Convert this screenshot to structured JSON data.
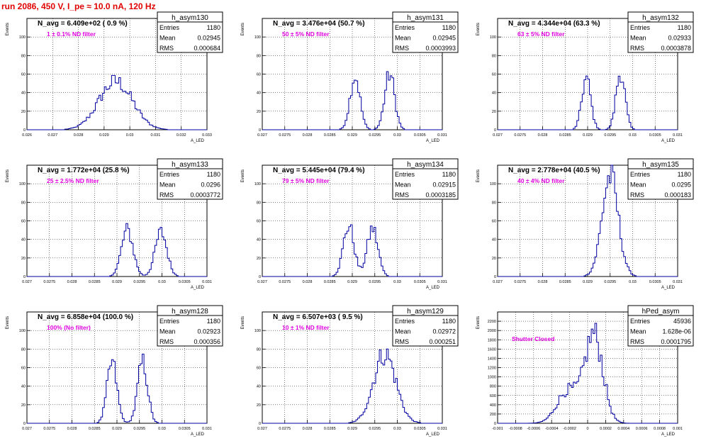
{
  "page_title": "run 2086,   450 V, I_pe ≈ 10.0 nA, 120 Hz",
  "stats_labels": {
    "entries": "Entries",
    "mean": "Mean",
    "rms": "RMS"
  },
  "colors": {
    "histogram": "#0000a0",
    "magenta_text": "#e000e0",
    "title_red": "#e00000",
    "grid": "#000000"
  },
  "chart_data": [
    {
      "type": "histogram",
      "name": "h_asym130",
      "header": "N_avg = 6.409e+02 ( 0.9 %)",
      "note": "1 ± 0.1% ND filter",
      "stats": {
        "entries": "1180",
        "mean": "0.02945",
        "rms": "0.000684"
      },
      "xlabel": "A_LED",
      "ylabel": "Events",
      "xlim": [
        0.026,
        0.033
      ],
      "ylim": [
        0,
        120
      ],
      "xticks": [
        "0.026",
        "0.027",
        "0.028",
        "0.029",
        "0.03",
        "0.031",
        "0.032",
        "0.033"
      ],
      "yticks": [
        "0",
        "20",
        "40",
        "60",
        "80",
        "100"
      ],
      "yticks_values": [
        0,
        20,
        40,
        60,
        80,
        100
      ],
      "grid": true,
      "shape": {
        "peaks": [
          {
            "center": 0.02945,
            "sigma": 0.00065,
            "height": 52
          }
        ]
      }
    },
    {
      "type": "histogram",
      "name": "h_asym131",
      "header": "N_avg = 3.476e+04 (50.7 %)",
      "note": "50 ± 5% ND filter",
      "stats": {
        "entries": "1180",
        "mean": "0.02945",
        "rms": "0.0003993"
      },
      "xlabel": "A_LED",
      "ylabel": "Events",
      "xlim": [
        0.027,
        0.031
      ],
      "ylim": [
        0,
        120
      ],
      "xticks": [
        "0.027",
        "0.0275",
        "0.028",
        "0.0285",
        "0.029",
        "0.0295",
        "0.03",
        "0.0305",
        "0.031"
      ],
      "yticks": [
        "0",
        "20",
        "40",
        "60",
        "80",
        "100"
      ],
      "yticks_values": [
        0,
        20,
        40,
        60,
        80,
        100
      ],
      "grid": true,
      "shape": {
        "peaks": [
          {
            "center": 0.02906,
            "sigma": 0.00011,
            "height": 58
          },
          {
            "center": 0.02983,
            "sigma": 0.00011,
            "height": 60
          }
        ]
      }
    },
    {
      "type": "histogram",
      "name": "h_asym132",
      "header": "N_avg = 4.344e+04 (63.3 %)",
      "note": "63 ± 5% ND filter",
      "stats": {
        "entries": "1180",
        "mean": "0.02933",
        "rms": "0.0003878"
      },
      "xlabel": "A_LED",
      "ylabel": "Events",
      "xlim": [
        0.027,
        0.031
      ],
      "ylim": [
        0,
        120
      ],
      "xticks": [
        "0.027",
        "0.0275",
        "0.028",
        "0.0285",
        "0.029",
        "0.0295",
        "0.03",
        "0.0305",
        "0.031"
      ],
      "yticks": [
        "0",
        "20",
        "40",
        "60",
        "80",
        "100"
      ],
      "yticks_values": [
        0,
        20,
        40,
        60,
        80,
        100
      ],
      "grid": true,
      "shape": {
        "peaks": [
          {
            "center": 0.02897,
            "sigma": 0.0001,
            "height": 55
          },
          {
            "center": 0.02973,
            "sigma": 0.0001,
            "height": 62
          }
        ]
      }
    },
    {
      "type": "histogram",
      "name": "h_asym133",
      "header": "N_avg = 1.772e+04 (25.8 %)",
      "note": "25 ± 2.5% ND filter",
      "stats": {
        "entries": "1180",
        "mean": "0.0296",
        "rms": "0.0003772"
      },
      "xlabel": "A_LED",
      "ylabel": "Events",
      "xlim": [
        0.027,
        0.031
      ],
      "ylim": [
        0,
        120
      ],
      "xticks": [
        "0.027",
        "0.0275",
        "0.028",
        "0.0285",
        "0.029",
        "0.0295",
        "0.03",
        "0.0305",
        "0.031"
      ],
      "yticks": [
        "0",
        "20",
        "40",
        "60",
        "80",
        "100"
      ],
      "yticks_values": [
        0,
        20,
        40,
        60,
        80,
        100
      ],
      "grid": true,
      "shape": {
        "peaks": [
          {
            "center": 0.02923,
            "sigma": 0.00013,
            "height": 50
          },
          {
            "center": 0.02998,
            "sigma": 0.00013,
            "height": 48
          }
        ]
      }
    },
    {
      "type": "histogram",
      "name": "h_asym134",
      "header": "N_avg = 5.445e+04 (79.4 %)",
      "note": "79 ± 5% ND filter",
      "stats": {
        "entries": "1180",
        "mean": "0.02915",
        "rms": "0.0003185"
      },
      "xlabel": "A_LED",
      "ylabel": "Events",
      "xlim": [
        0.027,
        0.031
      ],
      "ylim": [
        0,
        120
      ],
      "xticks": [
        "0.027",
        "0.0275",
        "0.028",
        "0.0285",
        "0.029",
        "0.0295",
        "0.03",
        "0.0305",
        "0.031"
      ],
      "yticks": [
        "0",
        "20",
        "40",
        "60",
        "80",
        "100"
      ],
      "yticks_values": [
        0,
        20,
        40,
        60,
        80,
        100
      ],
      "grid": true,
      "shape": {
        "peaks": [
          {
            "center": 0.02892,
            "sigma": 0.00012,
            "height": 55
          },
          {
            "center": 0.02945,
            "sigma": 0.00012,
            "height": 52
          }
        ]
      }
    },
    {
      "type": "histogram",
      "name": "h_asym135",
      "header": "N_avg = 2.778e+04 (40.5 %)",
      "note": "40 ± 4% ND filter",
      "stats": {
        "entries": "1180",
        "mean": "0.0295",
        "rms": "0.000183"
      },
      "xlabel": "A_LED",
      "ylabel": "Events",
      "xlim": [
        0.027,
        0.031
      ],
      "ylim": [
        0,
        120
      ],
      "xticks": [
        "0.027",
        "0.0275",
        "0.028",
        "0.0285",
        "0.029",
        "0.0295",
        "0.03",
        "0.0305",
        "0.031"
      ],
      "yticks": [
        "0",
        "20",
        "40",
        "60",
        "80",
        "100"
      ],
      "yticks_values": [
        0,
        20,
        40,
        60,
        80,
        100
      ],
      "grid": true,
      "shape": {
        "peaks": [
          {
            "center": 0.0295,
            "sigma": 0.00018,
            "height": 108
          }
        ]
      }
    },
    {
      "type": "histogram",
      "name": "h_asym128",
      "header": "N_avg = 6.858e+04 (100.0 %)",
      "note": "100% (No filter)",
      "stats": {
        "entries": "1180",
        "mean": "0.02923",
        "rms": "0.000356"
      },
      "xlabel": "A_LED",
      "ylabel": "Events",
      "xlim": [
        0.027,
        0.031
      ],
      "ylim": [
        0,
        120
      ],
      "xticks": [
        "0.027",
        "0.0275",
        "0.028",
        "0.0285",
        "0.029",
        "0.0295",
        "0.03",
        "0.0305",
        "0.031"
      ],
      "yticks": [
        "0",
        "20",
        "40",
        "60",
        "80",
        "100"
      ],
      "yticks_values": [
        0,
        20,
        40,
        60,
        80,
        100
      ],
      "grid": true,
      "shape": {
        "peaks": [
          {
            "center": 0.02889,
            "sigma": 0.00011,
            "height": 65
          },
          {
            "center": 0.02957,
            "sigma": 0.00011,
            "height": 66
          }
        ]
      }
    },
    {
      "type": "histogram",
      "name": "h_asym129",
      "header": "N_avg = 6.507e+03 ( 9.5 %)",
      "note": "10 ± 1% ND filter",
      "stats": {
        "entries": "1180",
        "mean": "0.02972",
        "rms": "0.000251"
      },
      "xlabel": "A_LED",
      "ylabel": "Events",
      "xlim": [
        0.027,
        0.031
      ],
      "ylim": [
        0,
        120
      ],
      "xticks": [
        "0.027",
        "0.0275",
        "0.028",
        "0.0285",
        "0.029",
        "0.0295",
        "0.03",
        "0.0305",
        "0.031"
      ],
      "yticks": [
        "0",
        "20",
        "40",
        "60",
        "80",
        "100"
      ],
      "yticks_values": [
        0,
        20,
        40,
        60,
        80,
        100
      ],
      "grid": true,
      "shape": {
        "peaks": [
          {
            "center": 0.02972,
            "sigma": 0.00025,
            "height": 75
          }
        ]
      }
    },
    {
      "type": "histogram",
      "name": "hPed_asym",
      "header": "",
      "note": "Shutter Closed",
      "stats": {
        "entries": "45936",
        "mean": "1.628e-06",
        "rms": "0.0001795"
      },
      "xlabel": "A_LED",
      "ylabel": "Events",
      "xlim": [
        -0.001,
        0.001
      ],
      "ylim": [
        0,
        2400
      ],
      "xticks": [
        "-0.001",
        "-0.0008",
        "-0.0006",
        "-0.0004",
        "-0.0002",
        "0",
        "0.0002",
        "0.0004",
        "0.0006",
        "0.0008",
        "0.001"
      ],
      "yticks": [
        "0",
        "200",
        "400",
        "600",
        "800",
        "1000",
        "1200",
        "1400",
        "1600",
        "1800",
        "2000",
        "2200"
      ],
      "yticks_values": [
        0,
        200,
        400,
        600,
        800,
        1000,
        1200,
        1400,
        1600,
        1800,
        2000,
        2200
      ],
      "grid": true,
      "shape": {
        "peaks": [
          {
            "center": 7e-05,
            "sigma": 0.0001,
            "height": 1900
          },
          {
            "center": -0.00022,
            "sigma": 0.00012,
            "height": 700
          }
        ]
      }
    }
  ]
}
